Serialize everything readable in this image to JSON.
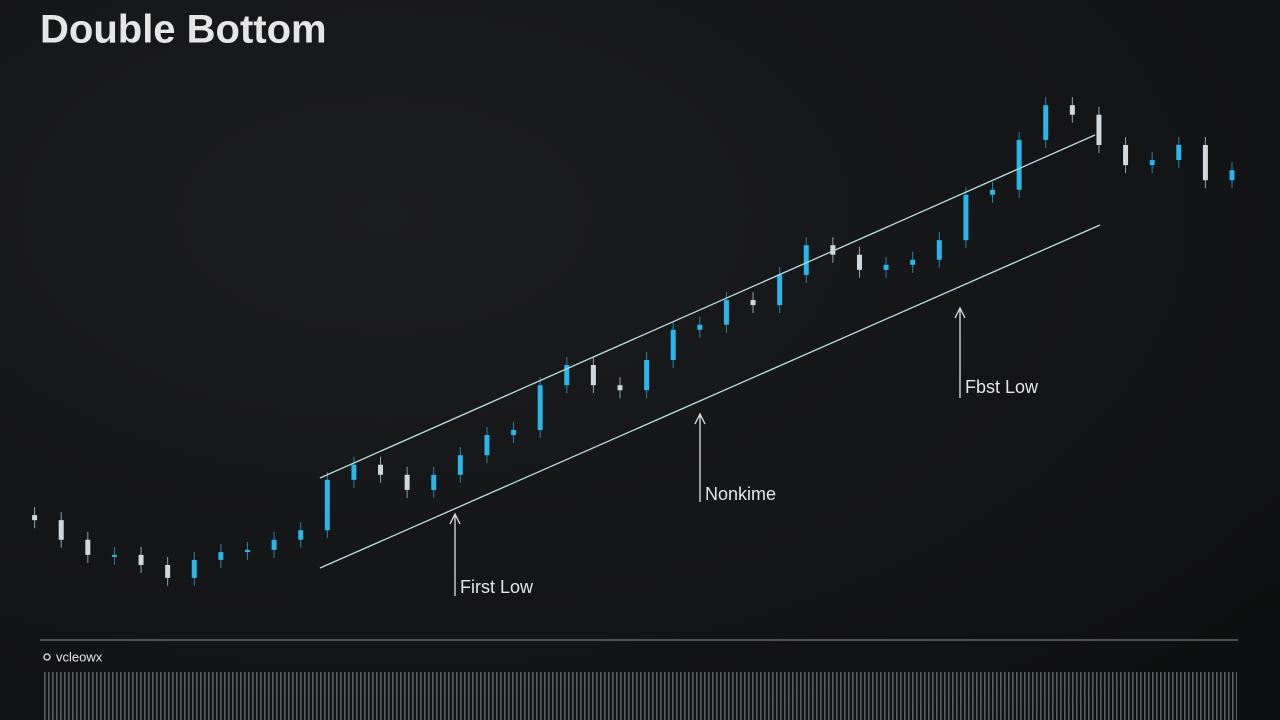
{
  "chart_data": {
    "type": "candlestick",
    "title": "Double Bottom",
    "categories": [
      null,
      null,
      null,
      null,
      null,
      null,
      null,
      null,
      null,
      null,
      null,
      null,
      null,
      null,
      null,
      null,
      null,
      null,
      null,
      null,
      null,
      null,
      null,
      null,
      null,
      null,
      null,
      null,
      null,
      null,
      null,
      null,
      null,
      null,
      null,
      null,
      null,
      null,
      null,
      null,
      null,
      null,
      null,
      null,
      null,
      null,
      null
    ],
    "values": [
      22.3,
      21.4,
      17.9,
      15.2,
      15.2,
      13.4,
      11.1,
      14.3,
      15.7,
      16.1,
      17.9,
      19.6,
      28.6,
      31.3,
      29.5,
      26.8,
      29.5,
      33.0,
      36.6,
      37.5,
      45.5,
      49.1,
      45.5,
      44.6,
      50.0,
      55.4,
      56.3,
      60.7,
      59.8,
      65.2,
      70.5,
      68.8,
      66.1,
      67.0,
      67.9,
      71.4,
      79.5,
      80.4,
      89.3,
      95.5,
      93.8,
      88.4,
      84.8,
      85.7,
      88.4,
      82.1,
      83.9
    ],
    "up_color": "#29b6e8",
    "down_color": "#cfd8dc",
    "ylim": [
      0,
      100
    ],
    "annotations": [
      {
        "text": "First Low"
      },
      {
        "text": "Nonkime"
      },
      {
        "text": "Fbst Low"
      }
    ],
    "volume_label": "vcleowx"
  }
}
